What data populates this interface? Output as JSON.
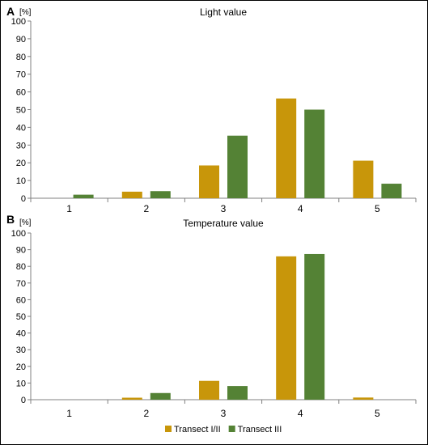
{
  "legend": {
    "placement": "bottom-center",
    "items": [
      {
        "label": "Transect I/II",
        "color": "#C8960A"
      },
      {
        "label": "Transect III",
        "color": "#548235"
      }
    ]
  },
  "chart_data": [
    {
      "type": "bar",
      "panel_letter": "A",
      "title": "Light value",
      "ylabel": "[%]",
      "ylim": [
        0,
        100
      ],
      "yticks": [
        0,
        10,
        20,
        30,
        40,
        50,
        60,
        70,
        80,
        90,
        100
      ],
      "categories": [
        "1",
        "2",
        "3",
        "4",
        "5"
      ],
      "grid": false,
      "series": [
        {
          "name": "Transect I/II",
          "color": "#C8960A",
          "values": [
            0,
            3.7,
            18.5,
            56.3,
            21.2
          ]
        },
        {
          "name": "Transect III",
          "color": "#548235",
          "values": [
            2,
            4,
            35.3,
            50,
            8.2
          ]
        }
      ]
    },
    {
      "type": "bar",
      "panel_letter": "B",
      "title": "Temperature value",
      "ylabel": "[%]",
      "ylim": [
        0,
        100
      ],
      "yticks": [
        0,
        10,
        20,
        30,
        40,
        50,
        60,
        70,
        80,
        90,
        100
      ],
      "categories": [
        "1",
        "2",
        "3",
        "4",
        "5"
      ],
      "grid": false,
      "series": [
        {
          "name": "Transect I/II",
          "color": "#C8960A",
          "values": [
            0,
            1.2,
            11.3,
            86,
            1.3
          ]
        },
        {
          "name": "Transect III",
          "color": "#548235",
          "values": [
            0,
            4,
            8.2,
            87.4,
            0
          ]
        }
      ]
    }
  ]
}
